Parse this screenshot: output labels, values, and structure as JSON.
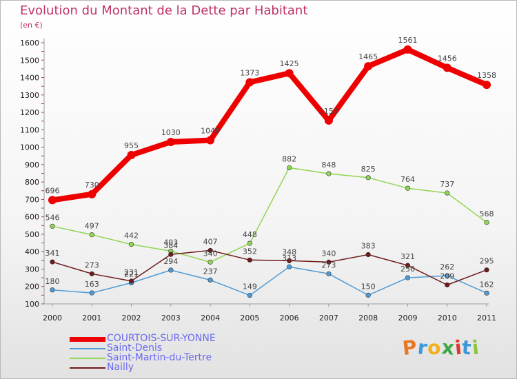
{
  "title": "Evolution du Montant de la Dette par Habitant",
  "subtitle": "(en €)",
  "logo_text": "Proxiti",
  "chart_data": {
    "type": "line",
    "x": [
      "2000",
      "2001",
      "2002",
      "2003",
      "2004",
      "2005",
      "2006",
      "2007",
      "2008",
      "2009",
      "2010",
      "2011"
    ],
    "ylim": [
      100,
      1600
    ],
    "yticks": [
      100,
      200,
      300,
      400,
      500,
      600,
      700,
      800,
      900,
      1000,
      1100,
      1200,
      1300,
      1400,
      1500,
      1600
    ],
    "grid": false,
    "legend_position": "bottom-left",
    "series": [
      {
        "name": "COURTOIS-SUR-YONNE",
        "color": "#ee0000",
        "values": [
          696,
          730,
          955,
          1030,
          1040,
          1373,
          1425,
          1153,
          1465,
          1561,
          1456,
          1358
        ]
      },
      {
        "name": "Saint-Denis",
        "color": "#4f9bd6",
        "values": [
          180,
          163,
          221,
          294,
          237,
          149,
          313,
          273,
          150,
          250,
          262,
          162
        ]
      },
      {
        "name": "Saint-Martin-du-Tertre",
        "color": "#8fd652",
        "values": [
          546,
          497,
          442,
          403,
          340,
          448,
          882,
          848,
          825,
          764,
          737,
          568
        ]
      },
      {
        "name": "Nailly",
        "color": "#6e1a1a",
        "values": [
          341,
          273,
          231,
          384,
          407,
          352,
          348,
          340,
          383,
          321,
          209,
          295
        ]
      }
    ]
  }
}
